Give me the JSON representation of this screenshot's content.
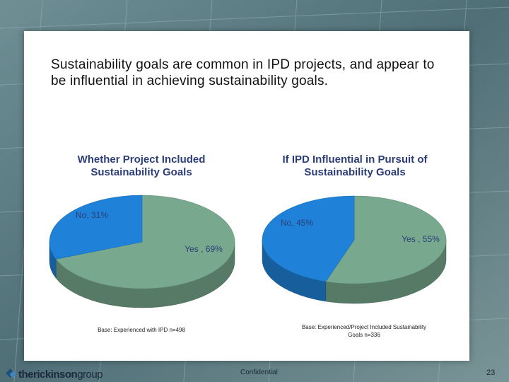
{
  "slide": {
    "title": "Sustainability goals are common in IPD projects, and appear to be influential in achieving sustainability goals.",
    "footer_confidential": "Confidential",
    "page_number": "23",
    "logo": {
      "bold1": "the",
      "bold2": "rickinson",
      "light": "group"
    }
  },
  "colors": {
    "yes": "#78a98e",
    "no": "#1f82d8",
    "title": "#2c3e78"
  },
  "chart_data": [
    {
      "type": "pie",
      "title_line1": "Whether Project Included",
      "title_line2": "Sustainability Goals",
      "labels": [
        "Yes , 69%",
        "No, 31%"
      ],
      "values": [
        69,
        31
      ],
      "note": "Base: Experienced with IPD n=498"
    },
    {
      "type": "pie",
      "title_line1": "If IPD Influential in Pursuit of",
      "title_line2": "Sustainability Goals",
      "labels": [
        "Yes , 55%",
        "No, 45%"
      ],
      "values": [
        55,
        45
      ],
      "note_line1": "Base: Experienced/Project Included Sustainability",
      "note_line2": "Goals n=336"
    }
  ]
}
